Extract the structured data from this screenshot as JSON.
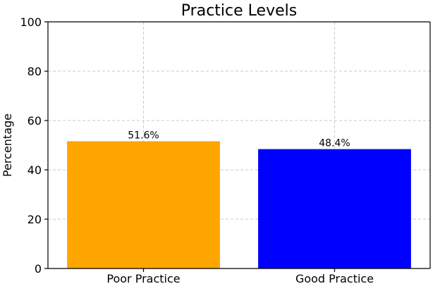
{
  "chart_data": {
    "type": "bar",
    "title": "Practice Levels",
    "xlabel": "",
    "ylabel": "Percentage",
    "categories": [
      "Poor Practice",
      "Good Practice"
    ],
    "values": [
      51.6,
      48.4
    ],
    "data_labels": [
      "51.6%",
      "48.4%"
    ],
    "colors": [
      "#ffa500",
      "#0000ff"
    ],
    "ylim": [
      0,
      100
    ],
    "yticks": [
      0,
      20,
      40,
      60,
      80,
      100
    ],
    "grid": true,
    "legend": "none"
  }
}
